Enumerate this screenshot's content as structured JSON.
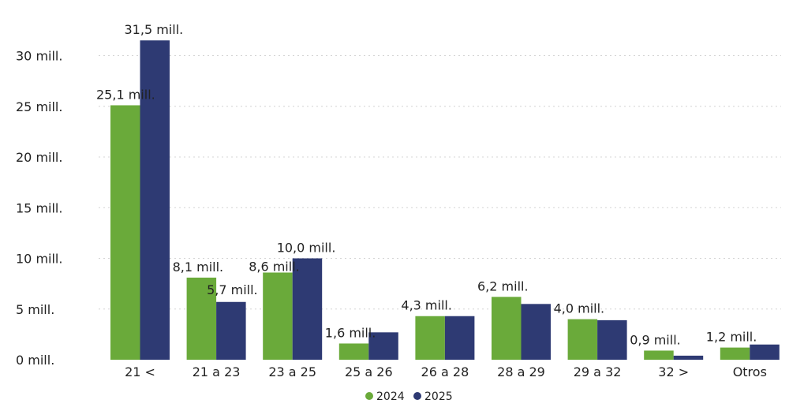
{
  "chart_data": {
    "type": "bar",
    "categories": [
      "21 <",
      "21 a 23",
      "23 a 25",
      "25 a 26",
      "26 a 28",
      "28 a 29",
      "29 a 32",
      "32 >",
      "Otros"
    ],
    "series": [
      {
        "name": "2024",
        "color": "#6aaa3a",
        "values": [
          25.1,
          8.1,
          8.6,
          1.6,
          4.3,
          6.2,
          4.0,
          0.9,
          1.2
        ],
        "labels": [
          "25,1 mill.",
          "8,1 mill.",
          "8,6 mill.",
          "1,6 mill.",
          "4,3 mill.",
          "6,2 mill.",
          "4,0 mill.",
          "0,9 mill.",
          "1,2 mill."
        ]
      },
      {
        "name": "2025",
        "color": "#2e3a73",
        "values": [
          31.5,
          5.7,
          10.0,
          2.7,
          4.3,
          5.5,
          3.9,
          0.4,
          1.5
        ],
        "labels": [
          "31,5 mill.",
          "5,7 mill.",
          "10,0 mill.",
          null,
          null,
          null,
          null,
          null,
          null
        ]
      }
    ],
    "ylim": [
      0,
      31.5
    ],
    "yticks": [
      {
        "value": 0,
        "label": "0 mill."
      },
      {
        "value": 5,
        "label": "5 mill."
      },
      {
        "value": 10,
        "label": "10 mill."
      },
      {
        "value": 15,
        "label": "15 mill."
      },
      {
        "value": 20,
        "label": "20 mill."
      },
      {
        "value": 25,
        "label": "25 mill."
      },
      {
        "value": 30,
        "label": "30 mill."
      }
    ],
    "grid": true,
    "legend_position": "bottom-center"
  }
}
